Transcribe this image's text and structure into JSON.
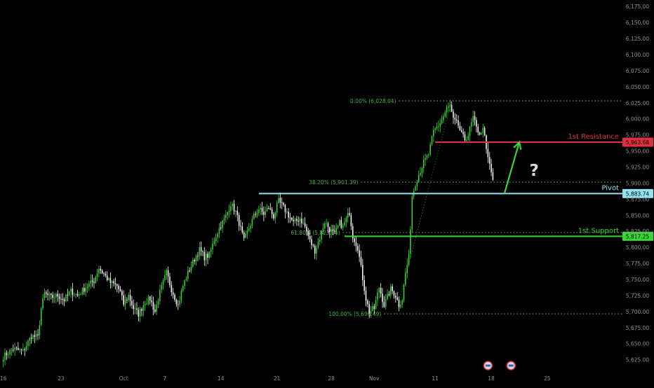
{
  "chart_data": {
    "type": "candlestick",
    "instrument": "",
    "ylim": [
      5605,
      6185
    ],
    "y_ticks": [
      5625,
      5650,
      5675,
      5700,
      5725,
      5750,
      5775,
      5800,
      5825,
      5850,
      5875,
      5900,
      5925,
      5950,
      5975,
      6000,
      6025,
      6050,
      6075,
      6100,
      6125,
      6150,
      6175
    ],
    "y_tick_labels": [
      "5,625.00",
      "5,650.00",
      "5,675.00",
      "5,700.00",
      "5,725.00",
      "5,750.00",
      "5,775.00",
      "5,800.00",
      "5,825.00",
      "5,850.00",
      "5,875.00",
      "5,900.00",
      "5,925.00",
      "5,950.00",
      "5,975.00",
      "6,000.00",
      "6,025.00",
      "6,050.00",
      "6,075.00",
      "6,100.00",
      "6,125.00",
      "6,150.00",
      "6,175.00"
    ],
    "x_ticks": [
      {
        "label": "16",
        "index": 0
      },
      {
        "label": "23",
        "index": 35
      },
      {
        "label": "Oct",
        "index": 73
      },
      {
        "label": "7",
        "index": 98
      },
      {
        "label": "14",
        "index": 132
      },
      {
        "label": "21",
        "index": 166
      },
      {
        "label": "28",
        "index": 199
      },
      {
        "label": "Nov",
        "index": 225
      },
      {
        "label": "11",
        "index": 262
      },
      {
        "label": "18",
        "index": 296
      },
      {
        "label": "25",
        "index": 330
      }
    ],
    "x_index_range": [
      -2,
      376
    ],
    "close_path": [
      [
        0,
        5630
      ],
      [
        6,
        5642
      ],
      [
        12,
        5638
      ],
      [
        17,
        5662
      ],
      [
        21,
        5660
      ],
      [
        23,
        5705
      ],
      [
        25,
        5728
      ],
      [
        29,
        5722
      ],
      [
        33,
        5725
      ],
      [
        37,
        5718
      ],
      [
        41,
        5732
      ],
      [
        45,
        5725
      ],
      [
        50,
        5738
      ],
      [
        55,
        5748
      ],
      [
        58,
        5768
      ],
      [
        62,
        5755
      ],
      [
        65,
        5745
      ],
      [
        69,
        5740
      ],
      [
        71,
        5730
      ],
      [
        73,
        5712
      ],
      [
        76,
        5725
      ],
      [
        79,
        5705
      ],
      [
        82,
        5696
      ],
      [
        86,
        5715
      ],
      [
        89,
        5720
      ],
      [
        92,
        5700
      ],
      [
        95,
        5730
      ],
      [
        99,
        5760
      ],
      [
        102,
        5735
      ],
      [
        106,
        5710
      ],
      [
        109,
        5740
      ],
      [
        112,
        5760
      ],
      [
        116,
        5782
      ],
      [
        119,
        5796
      ],
      [
        122,
        5785
      ],
      [
        125,
        5788
      ],
      [
        128,
        5812
      ],
      [
        131,
        5830
      ],
      [
        135,
        5848
      ],
      [
        138,
        5868
      ],
      [
        141,
        5855
      ],
      [
        143,
        5838
      ],
      [
        146,
        5810
      ],
      [
        149,
        5830
      ],
      [
        152,
        5848
      ],
      [
        155,
        5860
      ],
      [
        158,
        5852
      ],
      [
        161,
        5862
      ],
      [
        164,
        5848
      ],
      [
        167,
        5872
      ],
      [
        170,
        5862
      ],
      [
        173,
        5850
      ],
      [
        176,
        5838
      ],
      [
        180,
        5845
      ],
      [
        183,
        5832
      ],
      [
        186,
        5810
      ],
      [
        189,
        5795
      ],
      [
        192,
        5815
      ],
      [
        195,
        5840
      ],
      [
        198,
        5828
      ],
      [
        201,
        5820
      ],
      [
        204,
        5838
      ],
      [
        206,
        5832
      ],
      [
        210,
        5855
      ],
      [
        212,
        5818
      ],
      [
        215,
        5800
      ],
      [
        218,
        5752
      ],
      [
        220,
        5720
      ],
      [
        222,
        5700
      ],
      [
        225,
        5705
      ],
      [
        228,
        5738
      ],
      [
        231,
        5710
      ],
      [
        235,
        5735
      ],
      [
        238,
        5725
      ],
      [
        240,
        5710
      ],
      [
        242,
        5720
      ],
      [
        244,
        5760
      ],
      [
        246,
        5785
      ],
      [
        248,
        5880
      ],
      [
        250,
        5900
      ],
      [
        253,
        5920
      ],
      [
        255,
        5932
      ],
      [
        258,
        5945
      ],
      [
        261,
        5980
      ],
      [
        264,
        5990
      ],
      [
        266,
        5998
      ],
      [
        269,
        6015
      ],
      [
        271,
        6020
      ],
      [
        273,
        5998
      ],
      [
        276,
        5990
      ],
      [
        278,
        5975
      ],
      [
        280,
        5968
      ],
      [
        282,
        5975
      ],
      [
        285,
        6002
      ],
      [
        287,
        5985
      ],
      [
        290,
        5975
      ],
      [
        291,
        5990
      ],
      [
        293,
        5950
      ],
      [
        295,
        5928
      ],
      [
        297,
        5905
      ]
    ],
    "horizontal_levels": [
      {
        "name": "1st Resistance",
        "value": 5963.68,
        "value_label": "5,963.68",
        "color": "#e0303f",
        "style": "solid",
        "start_index": 262
      },
      {
        "name": "Pivot",
        "value": 5883.74,
        "value_label": "5,883.74",
        "color": "#8fe3f0",
        "style": "solid",
        "start_index": 155
      },
      {
        "name": "1st Support",
        "value": 5817.25,
        "value_label": "5,817.25",
        "color": "#39d733",
        "style": "solid",
        "start_index": 207
      }
    ],
    "fibonacci_levels": [
      {
        "label": "0.00% (6,028.04)",
        "value": 6028.04,
        "start_index": 240
      },
      {
        "label": "38.20% (5,901.39)",
        "value": 5901.39,
        "start_index": 217
      },
      {
        "label": "61.80% (5,823.14)",
        "value": 5823.14,
        "start_index": 206
      },
      {
        "label": "100.00% (5,696.49)",
        "value": 5696.49,
        "start_index": 231
      }
    ],
    "fib_anchor": {
      "from": [
        238,
        5696.49
      ],
      "to": [
        272,
        6028.04
      ]
    },
    "projection_arrow": {
      "from": [
        304,
        5883.74
      ],
      "to": [
        313,
        5963.68
      ],
      "color": "#39d733"
    },
    "annotation_text": "?",
    "annotation_at": [
      322,
      5920
    ],
    "event_markers_index": [
      294,
      308
    ],
    "colors": {
      "background": "#000000",
      "candle_up": "#39d733",
      "candle_down": "#ffffff",
      "fib_line": "#4caf50",
      "axis_text": "#8a8f98"
    }
  }
}
